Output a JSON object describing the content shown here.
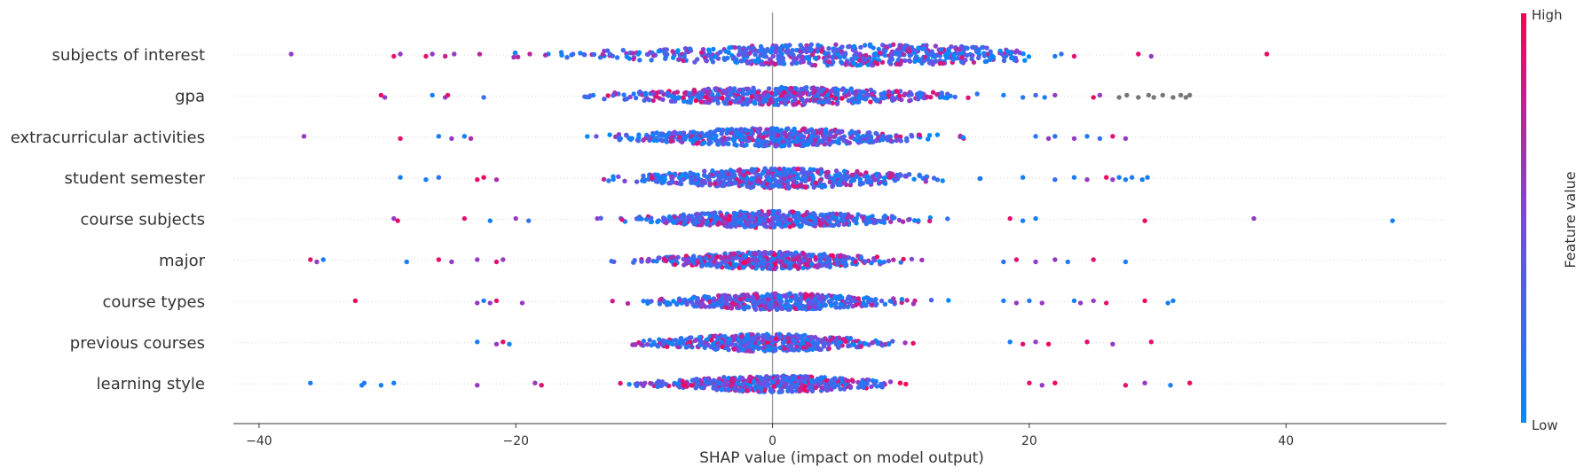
{
  "chart_data": {
    "type": "scatter",
    "subtype": "shap-beeswarm",
    "xlabel": "SHAP value (impact on model output)",
    "xlim": [
      -42,
      52.5
    ],
    "xticks": [
      -40,
      -20,
      0,
      20,
      40
    ],
    "xtick_labels": [
      "−40",
      "−20",
      "0",
      "20",
      "40"
    ],
    "zero_line": 0,
    "grid": false,
    "colorbar": {
      "label": "Feature value",
      "high_label": "High",
      "low_label": "Low",
      "colors": [
        "#008bfb",
        "#7a49e0",
        "#ff0052"
      ]
    },
    "series": [
      {
        "name": "subjects of interest",
        "points": [
          {
            "x": -37.5,
            "v": 0.6
          },
          {
            "x": -29.5,
            "v": 0.9
          },
          {
            "x": -29,
            "v": 0.6
          },
          {
            "x": -27,
            "v": 0.9
          },
          {
            "x": -26.5,
            "v": 0.6
          },
          {
            "x": -25.5,
            "v": 0.8
          },
          {
            "x": -24.8,
            "v": 0.6
          },
          {
            "x": 22,
            "v": 0.1
          },
          {
            "x": 22.5,
            "v": 0.2
          },
          {
            "x": 23.5,
            "v": 0.9
          },
          {
            "x": 28.5,
            "v": 0.9
          },
          {
            "x": 29.5,
            "v": 0.6
          },
          {
            "x": 38.5,
            "v": 0.95
          }
        ],
        "core": {
          "min": -24,
          "max": 20,
          "peak": 6,
          "spread": 10,
          "width": 0.52,
          "n": 620,
          "bias": 0.4,
          "low_share": 0.18
        }
      },
      {
        "name": "gpa",
        "points": [
          {
            "x": -30.5,
            "v": 0.95
          },
          {
            "x": -30.2,
            "v": 0.6
          },
          {
            "x": -26.5,
            "v": 0.1
          },
          {
            "x": -25.5,
            "v": 0.6
          },
          {
            "x": -25.3,
            "v": 0.9
          },
          {
            "x": -22.5,
            "v": 0.2
          },
          {
            "x": 18,
            "v": 0.1
          },
          {
            "x": 19.5,
            "v": 0.15
          },
          {
            "x": 20.5,
            "v": 0.3
          },
          {
            "x": 21.2,
            "v": 0.1
          },
          {
            "x": 22,
            "v": 0.6
          },
          {
            "x": 25,
            "v": 0.95
          },
          {
            "x": 25.5,
            "v": 0.6
          },
          {
            "x": 27,
            "v": "na"
          },
          {
            "x": 27.6,
            "v": "na"
          },
          {
            "x": 28.5,
            "v": "na"
          },
          {
            "x": 29.3,
            "v": "na"
          },
          {
            "x": 29.7,
            "v": "na"
          },
          {
            "x": 30.4,
            "v": "na"
          },
          {
            "x": 31.2,
            "v": "na"
          },
          {
            "x": 31.8,
            "v": "na"
          },
          {
            "x": 32.2,
            "v": "na"
          },
          {
            "x": 32.5,
            "v": "na"
          }
        ],
        "core": {
          "min": -21,
          "max": 17.5,
          "peak": 0.5,
          "spread": 6.5,
          "width": 0.44,
          "n": 560,
          "bias": 0.55,
          "low_share": 0.3
        }
      },
      {
        "name": "extracurricular activities",
        "points": [
          {
            "x": -36.5,
            "v": 0.6
          },
          {
            "x": -29,
            "v": 0.9
          },
          {
            "x": -26,
            "v": 0.1
          },
          {
            "x": -25,
            "v": 0.6
          },
          {
            "x": -24,
            "v": 0.1
          },
          {
            "x": -23.5,
            "v": 0.7
          },
          {
            "x": 20.5,
            "v": 0.15
          },
          {
            "x": 21.5,
            "v": 0.6
          },
          {
            "x": 22,
            "v": 0.15
          },
          {
            "x": 23.5,
            "v": 0.6
          },
          {
            "x": 24.5,
            "v": 0.1
          },
          {
            "x": 25.5,
            "v": 0.2
          },
          {
            "x": 26.5,
            "v": 0.9
          },
          {
            "x": 27.5,
            "v": 0.6
          }
        ],
        "core": {
          "min": -22,
          "max": 19.5,
          "peak": 0,
          "spread": 5.5,
          "width": 0.44,
          "n": 540,
          "bias": 0.45,
          "low_share": 0.35
        }
      },
      {
        "name": "student semester",
        "points": [
          {
            "x": -29,
            "v": 0.1
          },
          {
            "x": -27,
            "v": 0.1
          },
          {
            "x": -26,
            "v": 0.15
          },
          {
            "x": -23,
            "v": 0.9
          },
          {
            "x": -22.5,
            "v": 0.95
          },
          {
            "x": -21.5,
            "v": 0.7
          },
          {
            "x": 19.5,
            "v": 0.1
          },
          {
            "x": 22,
            "v": 0.2
          },
          {
            "x": 23.5,
            "v": 0.1
          },
          {
            "x": 24.5,
            "v": 0.6
          },
          {
            "x": 26,
            "v": 0.95
          },
          {
            "x": 26.5,
            "v": 0.6
          },
          {
            "x": 27,
            "v": 0.1
          },
          {
            "x": 27.5,
            "v": 0.1
          },
          {
            "x": 28,
            "v": 0.1
          },
          {
            "x": 28.8,
            "v": 0.1
          },
          {
            "x": 29.2,
            "v": 0.1
          }
        ],
        "core": {
          "min": -20.5,
          "max": 17.5,
          "peak": 0.5,
          "spread": 5.5,
          "width": 0.48,
          "n": 560,
          "bias": 0.45,
          "low_share": 0.4
        }
      },
      {
        "name": "course subjects",
        "points": [
          {
            "x": -29.5,
            "v": 0.6
          },
          {
            "x": -29.2,
            "v": 0.95
          },
          {
            "x": -24,
            "v": 0.9
          },
          {
            "x": -22,
            "v": 0.1
          },
          {
            "x": -20,
            "v": 0.6
          },
          {
            "x": -19,
            "v": 0.2
          },
          {
            "x": 18.5,
            "v": 0.9
          },
          {
            "x": 19.5,
            "v": 0.1
          },
          {
            "x": 20.5,
            "v": 0.1
          },
          {
            "x": 29,
            "v": 0.95
          },
          {
            "x": 37.5,
            "v": 0.6
          },
          {
            "x": 48.3,
            "v": 0.1
          }
        ],
        "core": {
          "min": -18,
          "max": 17.5,
          "peak": -0.2,
          "spread": 5,
          "width": 0.4,
          "n": 520,
          "bias": 0.5,
          "low_share": 0.35
        }
      },
      {
        "name": "major",
        "points": [
          {
            "x": -36,
            "v": 0.9
          },
          {
            "x": -35.5,
            "v": 0.6
          },
          {
            "x": -35,
            "v": 0.1
          },
          {
            "x": -28.5,
            "v": 0.1
          },
          {
            "x": -26,
            "v": 0.9
          },
          {
            "x": -25,
            "v": 0.6
          },
          {
            "x": -23,
            "v": 0.6
          },
          {
            "x": -21.5,
            "v": 0.9
          },
          {
            "x": -21,
            "v": 0.6
          },
          {
            "x": 18,
            "v": 0.2
          },
          {
            "x": 19,
            "v": 0.9
          },
          {
            "x": 20.5,
            "v": 0.6
          },
          {
            "x": 22,
            "v": 0.6
          },
          {
            "x": 23,
            "v": 0.15
          },
          {
            "x": 25,
            "v": 0.9
          },
          {
            "x": 27.5,
            "v": 0.1
          }
        ],
        "core": {
          "min": -19,
          "max": 17,
          "peak": 0,
          "spread": 4.5,
          "width": 0.42,
          "n": 520,
          "bias": 0.55,
          "low_share": 0.3
        }
      },
      {
        "name": "course types",
        "points": [
          {
            "x": -32.5,
            "v": 0.95
          },
          {
            "x": -23,
            "v": 0.6
          },
          {
            "x": -22.5,
            "v": 0.1
          },
          {
            "x": -22,
            "v": 0.6
          },
          {
            "x": -21.5,
            "v": 0.9
          },
          {
            "x": -19.5,
            "v": 0.6
          },
          {
            "x": 18,
            "v": 0.1
          },
          {
            "x": 19,
            "v": 0.6
          },
          {
            "x": 20,
            "v": 0.15
          },
          {
            "x": 21,
            "v": 0.6
          },
          {
            "x": 23.5,
            "v": 0.1
          },
          {
            "x": 24,
            "v": 0.6
          },
          {
            "x": 25,
            "v": 0.6
          },
          {
            "x": 26,
            "v": 0.9
          },
          {
            "x": 29,
            "v": 0.95
          },
          {
            "x": 30.8,
            "v": 0.1
          },
          {
            "x": 31.2,
            "v": 0.1
          }
        ],
        "core": {
          "min": -18,
          "max": 17,
          "peak": 0.5,
          "spread": 4.5,
          "width": 0.4,
          "n": 500,
          "bias": 0.45,
          "low_share": 0.3
        }
      },
      {
        "name": "previous courses",
        "points": [
          {
            "x": -23,
            "v": 0.1
          },
          {
            "x": -21.5,
            "v": 0.6
          },
          {
            "x": -21,
            "v": 0.9
          },
          {
            "x": -20.5,
            "v": 0.1
          },
          {
            "x": 18.5,
            "v": 0.1
          },
          {
            "x": 19.5,
            "v": 0.9
          },
          {
            "x": 20.5,
            "v": 0.6
          },
          {
            "x": 21.5,
            "v": 0.95
          },
          {
            "x": 24.5,
            "v": 0.9
          },
          {
            "x": 26.5,
            "v": 0.6
          },
          {
            "x": 29.5,
            "v": 0.9
          }
        ],
        "core": {
          "min": -19,
          "max": 17.5,
          "peak": -0.5,
          "spread": 4.5,
          "width": 0.42,
          "n": 500,
          "bias": 0.5,
          "low_share": 0.35
        }
      },
      {
        "name": "learning style",
        "points": [
          {
            "x": -36,
            "v": 0.1
          },
          {
            "x": -32,
            "v": 0.1
          },
          {
            "x": -31.8,
            "v": 0.15
          },
          {
            "x": -30.5,
            "v": 0.1
          },
          {
            "x": -29.5,
            "v": 0.1
          },
          {
            "x": -23,
            "v": 0.6
          },
          {
            "x": -18.5,
            "v": 0.6
          },
          {
            "x": -18,
            "v": 0.9
          },
          {
            "x": 20,
            "v": 0.9
          },
          {
            "x": 21,
            "v": 0.6
          },
          {
            "x": 22,
            "v": 0.95
          },
          {
            "x": 27.5,
            "v": 0.9
          },
          {
            "x": 29,
            "v": 0.6
          },
          {
            "x": 31,
            "v": 0.1
          },
          {
            "x": 32.5,
            "v": 0.95
          }
        ],
        "core": {
          "min": -17,
          "max": 17.5,
          "peak": 0.2,
          "spread": 4.5,
          "width": 0.4,
          "n": 500,
          "bias": 0.55,
          "low_share": 0.35
        }
      }
    ]
  }
}
